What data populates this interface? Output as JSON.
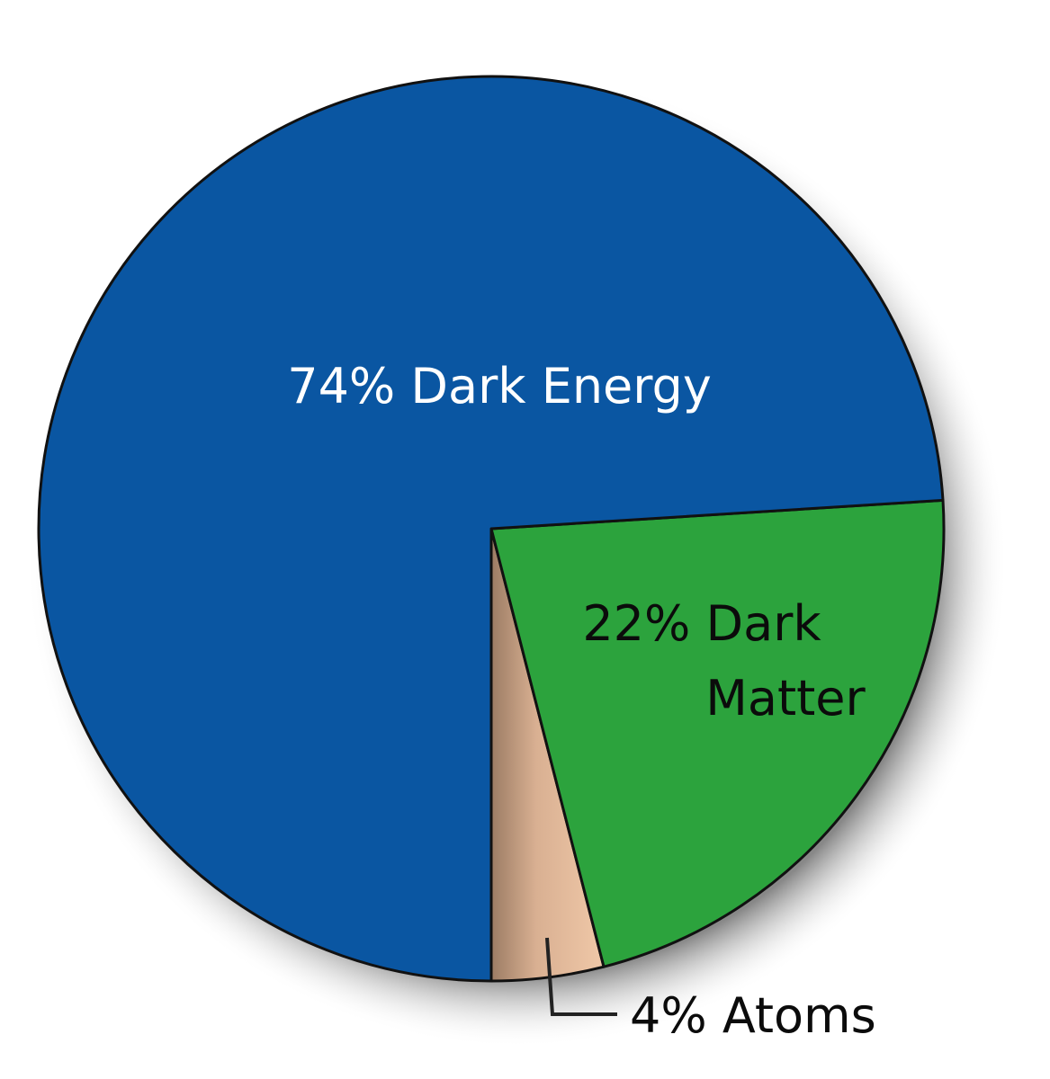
{
  "chart_data": {
    "type": "pie",
    "title": "",
    "slices": [
      {
        "label": "Dark Energy",
        "value": 74,
        "text_lines": [
          "74% Dark Energy"
        ],
        "color": "#0a56a2"
      },
      {
        "label": "Dark Matter",
        "value": 22,
        "text_lines": [
          "22% Dark",
          "Matter"
        ],
        "color": "#2ca33d"
      },
      {
        "label": "Atoms",
        "value": 4,
        "text_lines": [
          "4% Atoms"
        ],
        "color": "#dcb394"
      }
    ],
    "outline_color": "#111111",
    "shadow": true
  }
}
